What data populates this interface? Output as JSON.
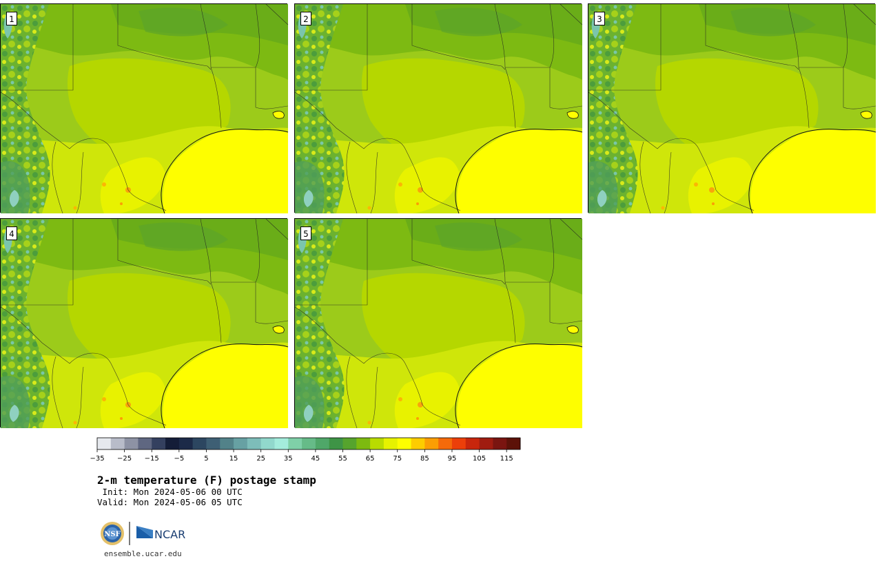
{
  "panels": [
    {
      "label": "1"
    },
    {
      "label": "2"
    },
    {
      "label": "3"
    },
    {
      "label": "4"
    },
    {
      "label": "5"
    }
  ],
  "colorbar": {
    "ticks": [
      "−35",
      "−25",
      "−15",
      "−5",
      "5",
      "15",
      "25",
      "35",
      "45",
      "55",
      "65",
      "75",
      "85",
      "95",
      "105",
      "115"
    ],
    "colors": [
      "#e6e9ee",
      "#b8bcc9",
      "#8d92a4",
      "#5f6781",
      "#34405f",
      "#141d38",
      "#1c2a48",
      "#2c4660",
      "#3e5f74",
      "#528289",
      "#67a1a3",
      "#7dbdb9",
      "#91d8cc",
      "#a4ecdc",
      "#7fd0a8",
      "#66bb88",
      "#4fa769",
      "#3e9446",
      "#56a42d",
      "#7dba10",
      "#b9dc00",
      "#e6f200",
      "#fefe00",
      "#fdcc00",
      "#fb9e04",
      "#f56a0a",
      "#ec3f0a",
      "#c8260c",
      "#a01c10",
      "#7a1510",
      "#5c1208"
    ]
  },
  "title": "2-m temperature (F) postage stamp",
  "init": " Init: Mon 2024-05-06 00 UTC",
  "valid": "Valid: Mon 2024-05-06 05 UTC",
  "logo": {
    "nsf": "NSF",
    "ncar": "NCAR"
  },
  "website": "ensemble.ucar.edu"
}
